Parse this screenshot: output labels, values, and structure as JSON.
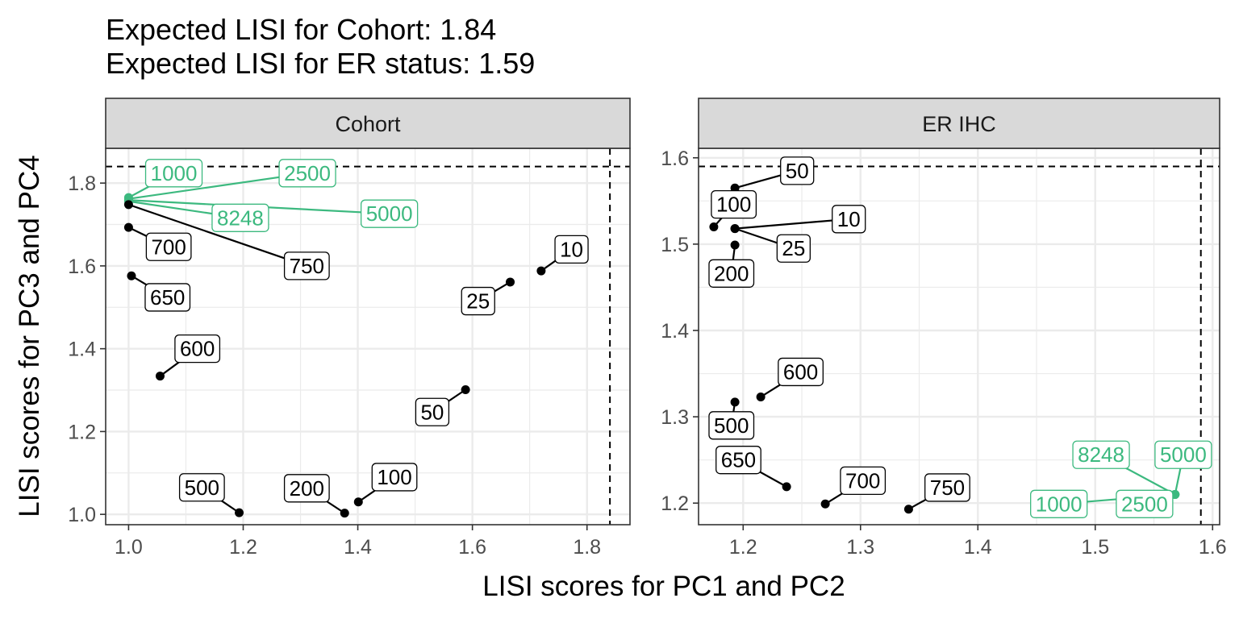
{
  "chart_data": {
    "type": "scatter",
    "title": [
      "Expected LISI for Cohort: 1.84",
      "Expected LISI for ER status: 1.59"
    ],
    "xlabel": "LISI scores for PC1 and PC2",
    "ylabel": "LISI scores for PC3 and PC4",
    "highlight_color": "#3cb97f",
    "default_color": "#000000",
    "grid": true,
    "panels": [
      {
        "strip": "Cohort",
        "expected": 1.84,
        "xlim": [
          0.96,
          1.875
        ],
        "ylim": [
          0.975,
          1.884
        ],
        "xticks": [
          {
            "v": 1.0,
            "label": "1.0"
          },
          {
            "v": 1.2,
            "label": "1.2"
          },
          {
            "v": 1.4,
            "label": "1.4"
          },
          {
            "v": 1.6,
            "label": "1.6"
          },
          {
            "v": 1.8,
            "label": "1.8"
          }
        ],
        "yticks": [
          {
            "v": 1.0,
            "label": "1.0"
          },
          {
            "v": 1.2,
            "label": "1.2"
          },
          {
            "v": 1.4,
            "label": "1.4"
          },
          {
            "v": 1.6,
            "label": "1.6"
          },
          {
            "v": 1.8,
            "label": "1.8"
          }
        ],
        "points": [
          {
            "label": "1000",
            "x": 1.0,
            "y": 1.765,
            "highlight": true,
            "lx": 1.079,
            "ly": 1.824
          },
          {
            "label": "2500",
            "x": 1.0,
            "y": 1.762,
            "highlight": true,
            "lx": 1.312,
            "ly": 1.824
          },
          {
            "label": "5000",
            "x": 1.0,
            "y": 1.759,
            "highlight": true,
            "lx": 1.455,
            "ly": 1.726
          },
          {
            "label": "8248",
            "x": 1.0,
            "y": 1.756,
            "highlight": true,
            "lx": 1.195,
            "ly": 1.716
          },
          {
            "label": "750",
            "x": 1.0,
            "y": 1.748,
            "highlight": false,
            "lx": 1.311,
            "ly": 1.6
          },
          {
            "label": "700",
            "x": 1.0,
            "y": 1.693,
            "highlight": false,
            "lx": 1.07,
            "ly": 1.646
          },
          {
            "label": "650",
            "x": 1.005,
            "y": 1.576,
            "highlight": false,
            "lx": 1.068,
            "ly": 1.524
          },
          {
            "label": "600",
            "x": 1.055,
            "y": 1.334,
            "highlight": false,
            "lx": 1.12,
            "ly": 1.4
          },
          {
            "label": "500",
            "x": 1.193,
            "y": 1.004,
            "highlight": false,
            "lx": 1.128,
            "ly": 1.065
          },
          {
            "label": "200",
            "x": 1.377,
            "y": 1.003,
            "highlight": false,
            "lx": 1.311,
            "ly": 1.063
          },
          {
            "label": "100",
            "x": 1.401,
            "y": 1.03,
            "highlight": false,
            "lx": 1.464,
            "ly": 1.09
          },
          {
            "label": "50",
            "x": 1.588,
            "y": 1.301,
            "highlight": false,
            "lx": 1.53,
            "ly": 1.247
          },
          {
            "label": "25",
            "x": 1.666,
            "y": 1.561,
            "highlight": false,
            "lx": 1.61,
            "ly": 1.515
          },
          {
            "label": "10",
            "x": 1.72,
            "y": 1.588,
            "highlight": false,
            "lx": 1.773,
            "ly": 1.64
          }
        ]
      },
      {
        "strip": "ER IHC",
        "expected": 1.59,
        "xlim": [
          1.162,
          1.606
        ],
        "ylim": [
          1.175,
          1.611
        ],
        "xticks": [
          {
            "v": 1.2,
            "label": "1.2"
          },
          {
            "v": 1.3,
            "label": "1.3"
          },
          {
            "v": 1.4,
            "label": "1.4"
          },
          {
            "v": 1.5,
            "label": "1.5"
          },
          {
            "v": 1.6,
            "label": "1.6"
          }
        ],
        "yticks": [
          {
            "v": 1.2,
            "label": "1.2"
          },
          {
            "v": 1.3,
            "label": "1.3"
          },
          {
            "v": 1.4,
            "label": "1.4"
          },
          {
            "v": 1.5,
            "label": "1.5"
          },
          {
            "v": 1.6,
            "label": "1.6"
          }
        ],
        "points": [
          {
            "label": "50",
            "x": 1.193,
            "y": 1.565,
            "highlight": false,
            "lx": 1.246,
            "ly": 1.585
          },
          {
            "label": "100",
            "x": 1.175,
            "y": 1.52,
            "highlight": false,
            "lx": 1.192,
            "ly": 1.546
          },
          {
            "label": "10",
            "x": 1.193,
            "y": 1.518,
            "highlight": false,
            "lx": 1.29,
            "ly": 1.529
          },
          {
            "label": "25",
            "x": 1.193,
            "y": 1.518,
            "highlight": false,
            "lx": 1.243,
            "ly": 1.495
          },
          {
            "label": "200",
            "x": 1.193,
            "y": 1.499,
            "highlight": false,
            "lx": 1.19,
            "ly": 1.466
          },
          {
            "label": "600",
            "x": 1.215,
            "y": 1.323,
            "highlight": false,
            "lx": 1.249,
            "ly": 1.352
          },
          {
            "label": "500",
            "x": 1.193,
            "y": 1.317,
            "highlight": false,
            "lx": 1.19,
            "ly": 1.29
          },
          {
            "label": "650",
            "x": 1.237,
            "y": 1.219,
            "highlight": false,
            "lx": 1.196,
            "ly": 1.25
          },
          {
            "label": "700",
            "x": 1.27,
            "y": 1.199,
            "highlight": false,
            "lx": 1.302,
            "ly": 1.226
          },
          {
            "label": "750",
            "x": 1.341,
            "y": 1.193,
            "highlight": false,
            "lx": 1.374,
            "ly": 1.218
          },
          {
            "label": "8248",
            "x": 1.568,
            "y": 1.21,
            "highlight": true,
            "lx": 1.505,
            "ly": 1.256
          },
          {
            "label": "5000",
            "x": 1.568,
            "y": 1.21,
            "highlight": true,
            "lx": 1.575,
            "ly": 1.256
          },
          {
            "label": "1000",
            "x": 1.568,
            "y": 1.21,
            "highlight": true,
            "lx": 1.469,
            "ly": 1.199
          },
          {
            "label": "2500",
            "x": 1.568,
            "y": 1.21,
            "highlight": true,
            "lx": 1.542,
            "ly": 1.199
          }
        ]
      }
    ]
  }
}
